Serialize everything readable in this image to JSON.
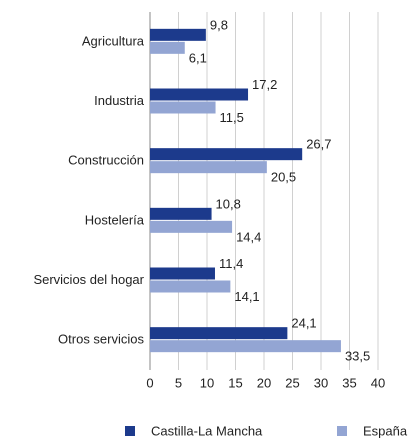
{
  "chart_data": {
    "type": "hbar",
    "categories": [
      "Agricultura",
      "Industria",
      "Construcción",
      "Hostelería",
      "Servicios del hogar",
      "Otros servicios"
    ],
    "series": [
      {
        "name": "Castilla-La Mancha",
        "color": "#1c3a8c",
        "values": [
          9.8,
          17.2,
          26.7,
          10.8,
          11.4,
          24.1
        ],
        "value_labels": [
          "9,8",
          "17,2",
          "26,7",
          "10,8",
          "11,4",
          "24,1"
        ]
      },
      {
        "name": "España",
        "color": "#93a5d3",
        "values": [
          6.1,
          11.5,
          20.5,
          14.4,
          14.1,
          33.5
        ],
        "value_labels": [
          "6,1",
          "11,5",
          "20,5",
          "14,4",
          "14,1",
          "33,5"
        ]
      }
    ],
    "xlim": [
      0,
      40
    ],
    "xticks": [
      0,
      5,
      10,
      15,
      20,
      25,
      30,
      35,
      40
    ],
    "grid": true,
    "legend": "bottom"
  }
}
